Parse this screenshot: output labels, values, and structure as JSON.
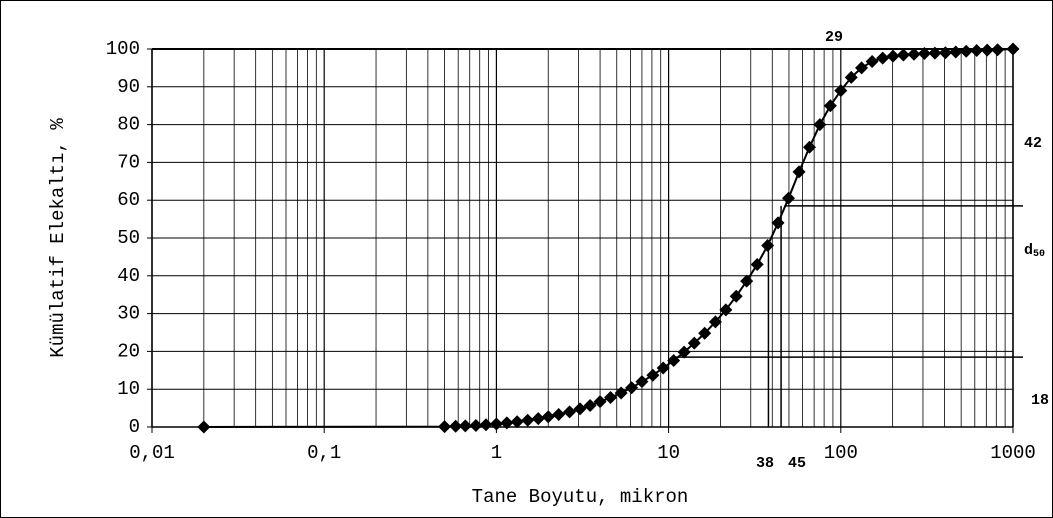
{
  "chart_data": {
    "type": "line",
    "xlabel": "Tane Boyutu, mikron",
    "ylabel": "Kümülatif Elekaltı, %",
    "xscale": "log",
    "grid": true,
    "minor_grid": true,
    "color": "#000000",
    "marker": "diamond",
    "x": [
      0.02,
      0.5,
      0.58,
      0.66,
      0.76,
      0.87,
      1.0,
      1.15,
      1.32,
      1.52,
      1.75,
      2.0,
      2.3,
      2.66,
      3.06,
      3.5,
      4.0,
      4.6,
      5.3,
      6.1,
      7.0,
      8.1,
      9.3,
      10.7,
      12.3,
      14.1,
      16.2,
      18.7,
      21.5,
      24.7,
      28.4,
      32.7,
      37.6,
      43.2,
      49.7,
      57.2,
      65.8,
      75.6,
      87,
      100,
      115,
      132,
      152,
      175,
      201,
      231,
      266,
      306,
      352,
      405,
      465,
      535,
      615,
      708,
      814,
      1000
    ],
    "values": [
      0,
      0.1,
      0.2,
      0.3,
      0.4,
      0.6,
      0.8,
      1.1,
      1.4,
      1.8,
      2.2,
      2.7,
      3.3,
      4.0,
      4.8,
      5.7,
      6.7,
      7.8,
      9.0,
      10.4,
      12.0,
      13.7,
      15.6,
      17.6,
      19.8,
      22.2,
      24.8,
      27.8,
      31.0,
      34.6,
      38.6,
      43.0,
      48.0,
      54.0,
      60.5,
      67.5,
      74.0,
      80.0,
      85.0,
      89.0,
      92.5,
      95.0,
      96.7,
      97.6,
      98.1,
      98.4,
      98.6,
      98.8,
      98.9,
      99.0,
      99.2,
      99.4,
      99.6,
      99.7,
      99.8,
      100
    ],
    "xlim": [
      0.01,
      1000
    ],
    "xticks": [
      {
        "value": 0.01,
        "label": "0,01"
      },
      {
        "value": 0.1,
        "label": "0,1"
      },
      1,
      10,
      100,
      1000
    ],
    "ylim": [
      0,
      100
    ],
    "yticks": [
      0,
      10,
      20,
      30,
      40,
      50,
      60,
      70,
      80,
      90,
      100
    ],
    "vlines": [
      {
        "x": 38,
        "y": 48
      },
      {
        "x": 45,
        "y": 58.5
      }
    ],
    "hlines": [
      {
        "y": 58.5,
        "x": 47
      },
      {
        "y": 18.5,
        "x": 11
      }
    ],
    "annotations": [
      "29",
      "42",
      "d50",
      "18",
      "38",
      "45"
    ]
  }
}
